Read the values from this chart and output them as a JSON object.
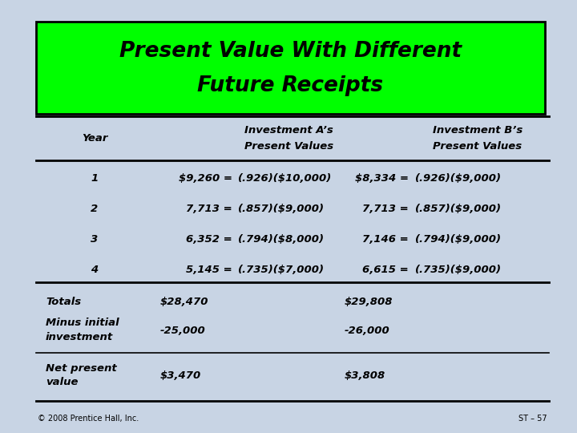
{
  "title_line1": "Present Value With Different",
  "title_line2": "Future Receipts",
  "title_bg_color": "#00FF00",
  "title_border_color": "#000000",
  "bg_color": "#C8D4E4",
  "header_col1": "Year",
  "header_col2_line1": "Investment A’s",
  "header_col2_line2": "Present Values",
  "header_col3_line1": "Investment B’s",
  "header_col3_line2": "Present Values",
  "rows": [
    {
      "year": "1",
      "a_val": "$9,260 =",
      "a_calc": "(.926)($10,000)",
      "b_val": "$8,334 =",
      "b_calc": "(.926)($9,000)"
    },
    {
      "year": "2",
      "a_val": "7,713 =",
      "a_calc": "(.857)($9,000)",
      "b_val": "7,713 =",
      "b_calc": "(.857)($9,000)"
    },
    {
      "year": "3",
      "a_val": "6,352 =",
      "a_calc": "(.794)($8,000)",
      "b_val": "7,146 =",
      "b_calc": "(.794)($9,000)"
    },
    {
      "year": "4",
      "a_val": "5,145 =",
      "a_calc": "(.735)($7,000)",
      "b_val": "6,615 =",
      "b_calc": "(.735)($9,000)"
    }
  ],
  "totals_label": "Totals",
  "totals_a": "$28,470",
  "totals_b": "$29,808",
  "minus_label_line1": "Minus initial",
  "minus_label_line2": "investment",
  "minus_a": "-25,000",
  "minus_b": "-26,000",
  "npv_label_line1": "Net present",
  "npv_label_line2": "value",
  "npv_a": "$3,470",
  "npv_b": "$3,808",
  "footer_left": "© 2008 Prentice Hall, Inc.",
  "footer_right": "ST – 57",
  "title_fontsize": 19,
  "header_fontsize": 9.5,
  "body_fontsize": 9.5,
  "footer_fontsize": 7
}
